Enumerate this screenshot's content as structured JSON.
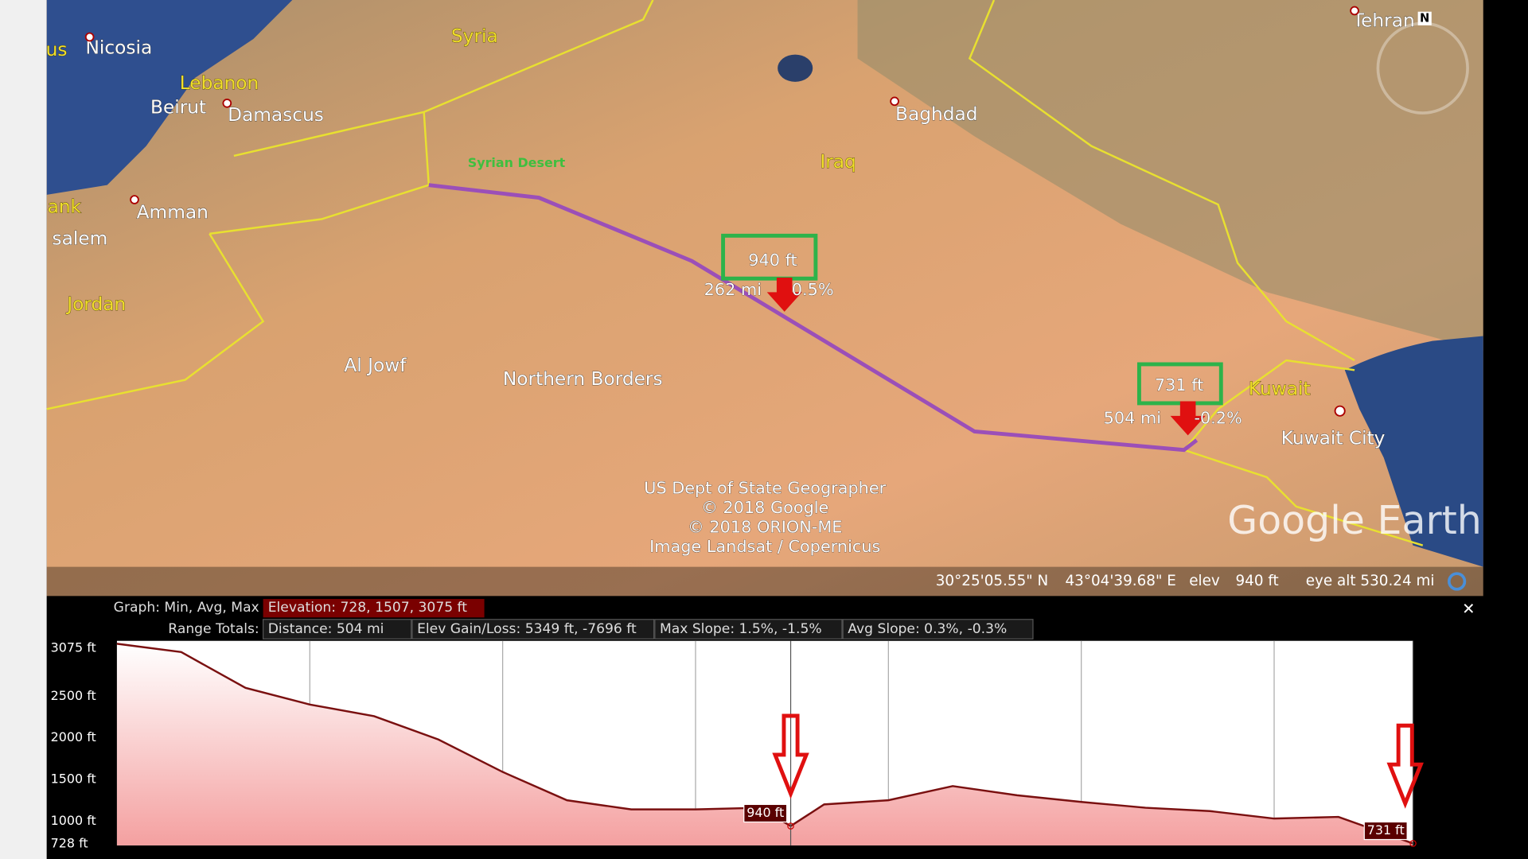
{
  "map": {
    "places": [
      {
        "label": "Syria",
        "style": "yl",
        "x": 487,
        "y": 38
      },
      {
        "label": "us",
        "style": "yl",
        "x": 58,
        "y": 52
      },
      {
        "label": "Nicosia",
        "style": "ml",
        "x": 122,
        "y": 50
      },
      {
        "label": "Lebanon",
        "style": "yl",
        "x": 225,
        "y": 86
      },
      {
        "label": "Beirut",
        "style": "ml",
        "x": 183,
        "y": 111
      },
      {
        "label": "Damascus",
        "style": "ml",
        "x": 283,
        "y": 119
      },
      {
        "label": "Syrian Desert",
        "style": "gd",
        "x": 530,
        "y": 168
      },
      {
        "label": "Iraq",
        "style": "yl",
        "x": 860,
        "y": 167
      },
      {
        "label": "Baghdad",
        "style": "ml",
        "x": 961,
        "y": 118
      },
      {
        "label": "Tehran",
        "style": "ml",
        "x": 1420,
        "y": 22
      },
      {
        "label": "ank",
        "style": "yl",
        "x": 66,
        "y": 213
      },
      {
        "label": "Amman",
        "style": "ml",
        "x": 177,
        "y": 219
      },
      {
        "label": "salem",
        "style": "ml",
        "x": 82,
        "y": 246
      },
      {
        "label": "Jordan",
        "style": "yl",
        "x": 99,
        "y": 313
      },
      {
        "label": "Al Jowf",
        "style": "big",
        "x": 385,
        "y": 376
      },
      {
        "label": "Northern Borders",
        "style": "big",
        "x": 598,
        "y": 390
      },
      {
        "label": "Kuwait",
        "style": "yl",
        "x": 1313,
        "y": 400
      },
      {
        "label": "Kuwait City",
        "style": "big",
        "x": 1368,
        "y": 451
      }
    ],
    "compass": "N",
    "callouts": [
      {
        "elevation": "940 ft",
        "distance": "262 mi",
        "slope": "0.5%"
      },
      {
        "elevation": "731 ft",
        "distance": "504 mi",
        "slope": "-0.2%"
      }
    ],
    "attribution": [
      "US Dept of State Geographer",
      "© 2018 Google",
      "© 2018 ORION-ME",
      "Image Landsat / Copernicus"
    ],
    "logo": "Google Earth",
    "status": {
      "lat": "30°25'05.55\" N",
      "lon": "43°04'39.68\" E",
      "elev_label": "elev",
      "elev": "940 ft",
      "eye_alt": "eye alt 530.24 mi"
    }
  },
  "graph": {
    "stats_label": "Graph: Min, Avg, Max",
    "elevation": "Elevation: 728, 1507, 3075 ft",
    "range_label": "Range Totals:",
    "distance": "Distance: 504 mi",
    "gain_loss": "Elev Gain/Loss: 5349 ft, -7696 ft",
    "max_slope": "Max Slope: 1.5%, -1.5%",
    "avg_slope": "Avg Slope: 0.3%, -0.3%",
    "close": "✕",
    "profile": {
      "xlim": [
        0,
        504
      ],
      "ylim": [
        708,
        3165
      ],
      "xticks": [
        75,
        150,
        225,
        300,
        375,
        450
      ],
      "yticks": [
        {
          "value": 3075,
          "label": "3075 ft"
        },
        {
          "value": 2500,
          "label": "2500 ft"
        },
        {
          "value": 2000,
          "label": "2000 ft"
        },
        {
          "value": 1500,
          "label": "1500 ft"
        },
        {
          "value": 1000,
          "label": "1000 ft"
        },
        {
          "value": 728,
          "label": "728 ft"
        }
      ],
      "x": [
        0,
        25,
        50,
        75,
        100,
        125,
        150,
        175,
        200,
        225,
        250,
        262,
        275,
        300,
        325,
        350,
        375,
        400,
        425,
        450,
        475,
        504
      ],
      "values": [
        3130,
        3030,
        2600,
        2400,
        2260,
        1980,
        1590,
        1250,
        1140,
        1140,
        1160,
        940,
        1200,
        1250,
        1420,
        1310,
        1230,
        1160,
        1120,
        1030,
        1050,
        731
      ],
      "markers": [
        {
          "x": 262,
          "value": 940
        },
        {
          "x": 504,
          "value": 731
        }
      ]
    }
  }
}
